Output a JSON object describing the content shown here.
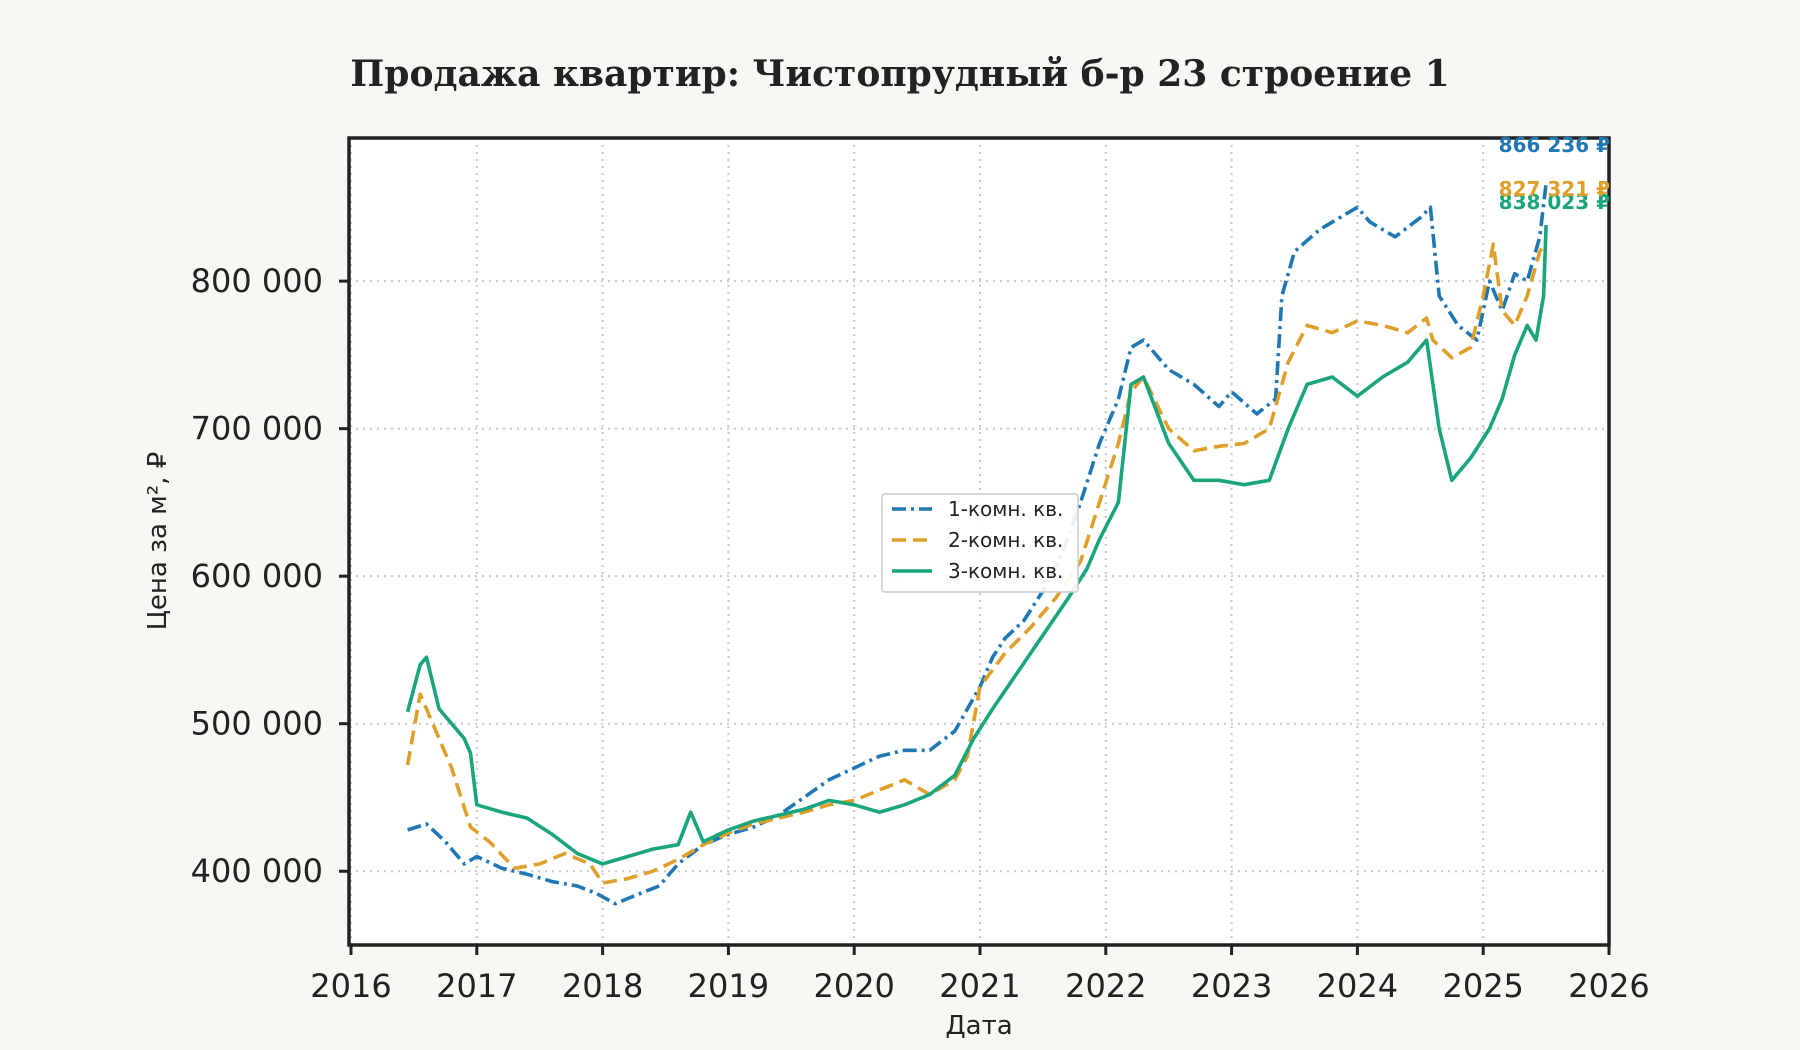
{
  "chart_data": {
    "type": "line",
    "title": "Продажа квартир: Чистопрудный б-р 23 строение 1",
    "xlabel": "Дата",
    "ylabel": "Цена за м², ₽",
    "x_ticks": [
      "2016",
      "2017",
      "2018",
      "2019",
      "2020",
      "2021",
      "2022",
      "2023",
      "2024",
      "2025",
      "2026"
    ],
    "y_ticks": [
      "400 000",
      "500 000",
      "600 000",
      "700 000",
      "800 000"
    ],
    "y_tick_values": [
      400000,
      500000,
      600000,
      700000,
      800000
    ],
    "xlim": [
      2016.0,
      2026.0
    ],
    "ylim": [
      350000,
      897000
    ],
    "grid": true,
    "legend_position": "center",
    "series": [
      {
        "name": "1-комн. кв.",
        "color": "#1f77b4",
        "style": "dashdot",
        "end_label": "866 236 ₽",
        "x": [
          2016.45,
          2016.6,
          2016.75,
          2016.9,
          2017.0,
          2017.2,
          2017.4,
          2017.6,
          2017.8,
          2017.95,
          2018.1,
          2018.3,
          2018.45,
          2018.6,
          2018.8,
          2019.0,
          2019.2,
          2019.4,
          2019.6,
          2019.8,
          2020.0,
          2020.2,
          2020.4,
          2020.6,
          2020.8,
          2020.9,
          2021.0,
          2021.1,
          2021.2,
          2021.35,
          2021.5,
          2021.65,
          2021.8,
          2021.95,
          2022.1,
          2022.2,
          2022.3,
          2022.5,
          2022.7,
          2022.9,
          2023.0,
          2023.2,
          2023.35,
          2023.4,
          2023.5,
          2023.7,
          2023.9,
          2024.0,
          2024.1,
          2024.3,
          2024.5,
          2024.58,
          2024.65,
          2024.8,
          2024.95,
          2025.05,
          2025.15,
          2025.25,
          2025.35,
          2025.45,
          2025.5
        ],
        "y": [
          428000,
          432000,
          420000,
          405000,
          410000,
          402000,
          398000,
          393000,
          390000,
          385000,
          378000,
          385000,
          390000,
          405000,
          418000,
          425000,
          430000,
          438000,
          450000,
          462000,
          470000,
          478000,
          482000,
          482000,
          495000,
          510000,
          525000,
          545000,
          558000,
          570000,
          590000,
          615000,
          650000,
          690000,
          720000,
          755000,
          760000,
          740000,
          730000,
          715000,
          725000,
          710000,
          720000,
          790000,
          820000,
          835000,
          845000,
          850000,
          840000,
          830000,
          843000,
          850000,
          790000,
          770000,
          760000,
          800000,
          780000,
          805000,
          800000,
          830000,
          866236
        ]
      },
      {
        "name": "2-комн. кв.",
        "color": "#de9f2b",
        "style": "dashed",
        "end_label": "827 321 ₽",
        "x": [
          2016.45,
          2016.55,
          2016.65,
          2016.8,
          2016.95,
          2017.1,
          2017.3,
          2017.5,
          2017.7,
          2017.9,
          2018.0,
          2018.2,
          2018.4,
          2018.6,
          2018.8,
          2019.0,
          2019.2,
          2019.4,
          2019.6,
          2019.8,
          2020.0,
          2020.2,
          2020.4,
          2020.6,
          2020.8,
          2020.9,
          2021.0,
          2021.2,
          2021.4,
          2021.6,
          2021.8,
          2021.95,
          2022.1,
          2022.2,
          2022.3,
          2022.5,
          2022.7,
          2022.9,
          2023.1,
          2023.3,
          2023.45,
          2023.6,
          2023.8,
          2024.0,
          2024.2,
          2024.4,
          2024.55,
          2024.6,
          2024.75,
          2024.9,
          2025.0,
          2025.08,
          2025.15,
          2025.25,
          2025.35,
          2025.45,
          2025.5
        ],
        "y": [
          472000,
          520000,
          500000,
          470000,
          430000,
          420000,
          402000,
          405000,
          412000,
          405000,
          392000,
          395000,
          400000,
          408000,
          418000,
          426000,
          432000,
          436000,
          440000,
          445000,
          448000,
          455000,
          462000,
          452000,
          462000,
          478000,
          525000,
          548000,
          565000,
          585000,
          610000,
          650000,
          690000,
          725000,
          735000,
          700000,
          685000,
          688000,
          690000,
          700000,
          745000,
          770000,
          765000,
          773000,
          770000,
          765000,
          775000,
          760000,
          748000,
          755000,
          790000,
          825000,
          780000,
          770000,
          790000,
          820000,
          827321
        ]
      },
      {
        "name": "3-комн. кв.",
        "color": "#1aa57d",
        "style": "solid",
        "end_label": "838 023 ₽",
        "x": [
          2016.45,
          2016.55,
          2016.6,
          2016.7,
          2016.8,
          2016.9,
          2016.95,
          2017.0,
          2017.2,
          2017.4,
          2017.6,
          2017.8,
          2018.0,
          2018.2,
          2018.4,
          2018.6,
          2018.7,
          2018.8,
          2019.0,
          2019.2,
          2019.4,
          2019.6,
          2019.8,
          2020.0,
          2020.2,
          2020.4,
          2020.6,
          2020.8,
          2020.95,
          2021.1,
          2021.3,
          2021.5,
          2021.7,
          2021.85,
          2021.95,
          2022.1,
          2022.2,
          2022.3,
          2022.5,
          2022.7,
          2022.9,
          2023.1,
          2023.3,
          2023.45,
          2023.6,
          2023.8,
          2024.0,
          2024.2,
          2024.4,
          2024.55,
          2024.65,
          2024.75,
          2024.9,
          2025.05,
          2025.15,
          2025.25,
          2025.35,
          2025.42,
          2025.48,
          2025.5
        ],
        "y": [
          508000,
          540000,
          545000,
          510000,
          500000,
          490000,
          480000,
          445000,
          440000,
          436000,
          425000,
          412000,
          405000,
          410000,
          415000,
          418000,
          440000,
          420000,
          428000,
          434000,
          438000,
          442000,
          448000,
          445000,
          440000,
          445000,
          452000,
          465000,
          490000,
          510000,
          535000,
          560000,
          585000,
          605000,
          625000,
          650000,
          730000,
          735000,
          690000,
          665000,
          665000,
          662000,
          665000,
          700000,
          730000,
          735000,
          722000,
          735000,
          745000,
          760000,
          700000,
          665000,
          680000,
          700000,
          720000,
          750000,
          770000,
          760000,
          790000,
          838023
        ]
      }
    ]
  }
}
